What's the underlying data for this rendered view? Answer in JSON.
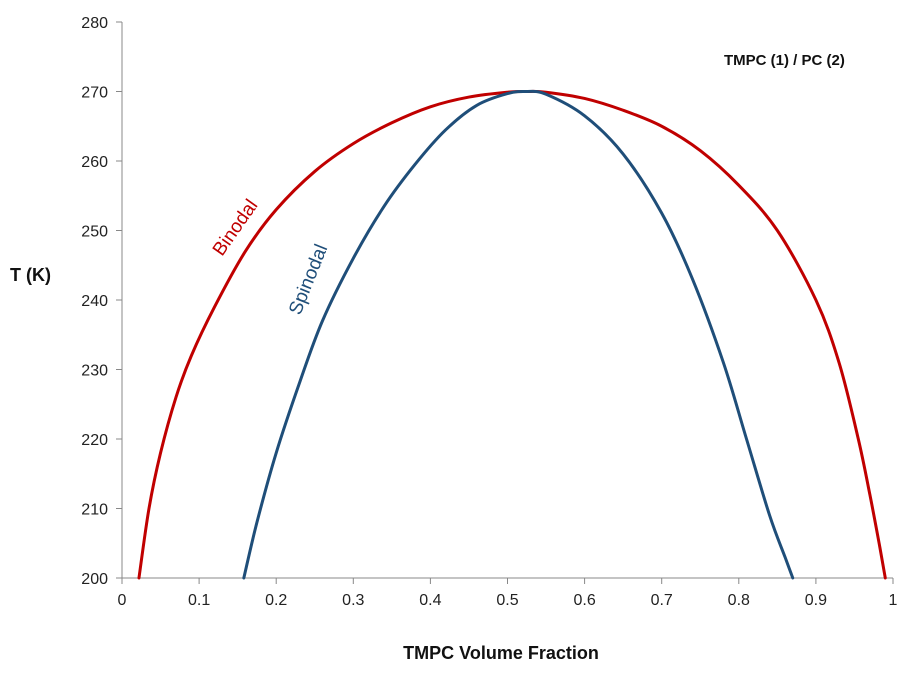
{
  "chart_data": {
    "type": "line",
    "title": "",
    "annotation": "TMPC (1) / PC (2)",
    "xlabel": "TMPC Volume Fraction",
    "ylabel": "T (K)",
    "xlim": [
      0,
      1
    ],
    "ylim": [
      200,
      280
    ],
    "x_ticks": [
      "0",
      "0.1",
      "0.2",
      "0.3",
      "0.4",
      "0.5",
      "0.6",
      "0.7",
      "0.8",
      "0.9",
      "1"
    ],
    "y_ticks": [
      "200",
      "210",
      "220",
      "230",
      "240",
      "250",
      "260",
      "270",
      "280"
    ],
    "grid": false,
    "legend": "none",
    "series": [
      {
        "name": "Binodal",
        "color": "#c00000",
        "x": [
          0.022,
          0.035,
          0.05,
          0.07,
          0.09,
          0.12,
          0.16,
          0.2,
          0.25,
          0.3,
          0.35,
          0.4,
          0.45,
          0.5,
          0.525,
          0.55,
          0.6,
          0.65,
          0.7,
          0.75,
          0.8,
          0.85,
          0.9,
          0.93,
          0.955,
          0.97,
          0.982,
          0.99
        ],
        "y": [
          200,
          210,
          218,
          226,
          232,
          239,
          247,
          253,
          258.5,
          262.5,
          265.5,
          267.8,
          269.2,
          269.9,
          270,
          269.9,
          269,
          267.3,
          265,
          261.5,
          256.5,
          250,
          240,
          231,
          220,
          212,
          205,
          200
        ]
      },
      {
        "name": "Spinodal",
        "color": "#1f4e79",
        "x": [
          0.158,
          0.175,
          0.2,
          0.23,
          0.26,
          0.3,
          0.34,
          0.38,
          0.42,
          0.46,
          0.5,
          0.525,
          0.55,
          0.6,
          0.65,
          0.7,
          0.74,
          0.78,
          0.81,
          0.84,
          0.86,
          0.87
        ],
        "y": [
          200,
          208,
          218,
          228,
          237,
          246,
          253.5,
          259.5,
          264.5,
          268,
          269.7,
          270,
          269.6,
          266.5,
          261,
          252.5,
          243,
          231,
          220,
          209,
          203,
          200
        ]
      }
    ]
  }
}
